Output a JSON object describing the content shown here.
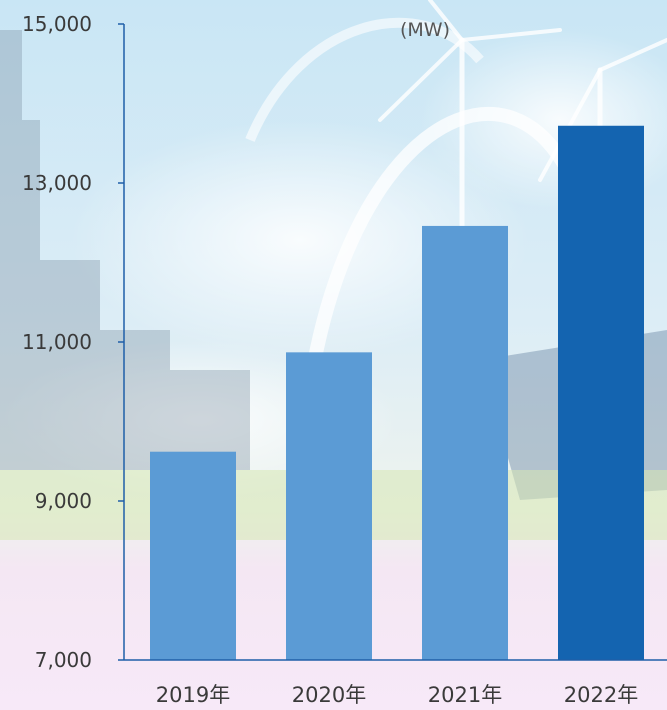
{
  "chart_data": {
    "type": "bar",
    "unit": "(MW)",
    "categories": [
      "2019年",
      "2020年",
      "2021年",
      "2022年"
    ],
    "values": [
      9620,
      10870,
      12460,
      13720
    ],
    "ylim": [
      7000,
      15000
    ],
    "yticks": [
      "7,000",
      "9,000",
      "11,000",
      "13,000",
      "15,000"
    ],
    "ytick_values": [
      7000,
      9000,
      11000,
      13000,
      15000
    ],
    "bar_colors": [
      "#5b9bd5",
      "#5b9bd5",
      "#5b9bd5",
      "#1464b0"
    ],
    "axis_color": "#1f5fa8",
    "grid": false,
    "legend": "none"
  }
}
